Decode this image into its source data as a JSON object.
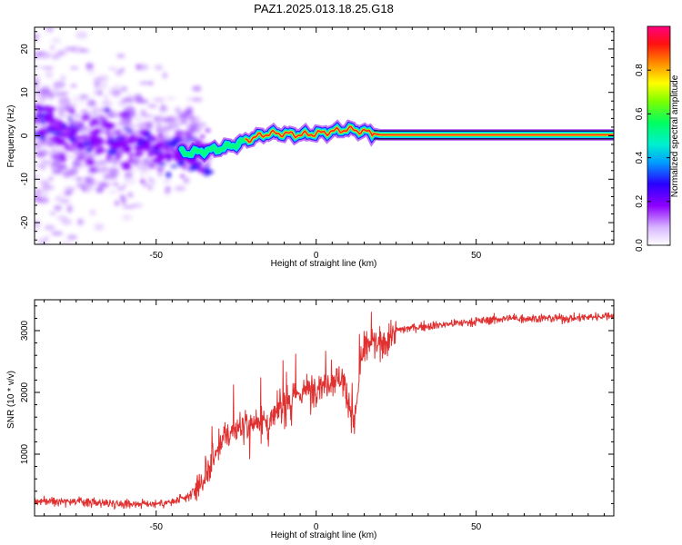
{
  "figure": {
    "title": "PAZ1.2025.013.18.25.G18"
  },
  "chart_data": [
    {
      "type": "heatmap",
      "xlabel": "Height of straight line (km)",
      "ylabel": "Frequency (Hz)",
      "xlim": [
        -88,
        93
      ],
      "ylim": [
        -25,
        25
      ],
      "xticks": [
        -50,
        0,
        50
      ],
      "yticks": [
        -20,
        -10,
        0,
        10,
        20
      ],
      "colorbar": {
        "label": "Normalized spectral amplitude",
        "range": [
          0,
          1
        ],
        "ticks": [
          "0.0",
          "0.2",
          "0.4",
          "0.6",
          "0.8"
        ],
        "colors": [
          "#ffffff",
          "#a000ff",
          "#3000ff",
          "#00c8ff",
          "#00ff80",
          "#30ff00",
          "#ffff00",
          "#ff8000",
          "#ff0000",
          "#ff0080"
        ]
      },
      "ridge": {
        "x": [
          -88,
          -80,
          -70,
          -60,
          -50,
          -40,
          -35,
          -30,
          -25,
          -20,
          -15,
          -10,
          -5,
          0,
          5,
          10,
          15,
          20,
          93
        ],
        "freq": [
          5,
          1,
          -1,
          -2,
          -3,
          -4,
          -3.5,
          -3,
          -2,
          -0.5,
          0.5,
          0.5,
          0.2,
          0.5,
          1.0,
          1.5,
          1.0,
          0.2,
          0.2
        ]
      }
    },
    {
      "type": "line",
      "xlabel": "Height of straight line (km)",
      "ylabel": "SNR (10 * v/v)",
      "xlim": [
        -88,
        93
      ],
      "ylim": [
        0,
        3500
      ],
      "xticks": [
        -50,
        0,
        50
      ],
      "yticks": [
        1000,
        2000,
        3000
      ],
      "line_color": "#e03030",
      "series": [
        {
          "x": [
            -88,
            -80,
            -70,
            -60,
            -50,
            -45,
            -40,
            -35,
            -32,
            -30,
            -28,
            -25,
            -22,
            -20,
            -17,
            -15,
            -12,
            -10,
            -7,
            -5,
            -2,
            0,
            3,
            5,
            8,
            10,
            12,
            14,
            16,
            18,
            20,
            25,
            30,
            40,
            50,
            60,
            70,
            80,
            93
          ],
          "y": [
            230,
            250,
            220,
            200,
            200,
            220,
            300,
            600,
            900,
            1200,
            1300,
            1400,
            1500,
            1500,
            1600,
            1400,
            1700,
            1800,
            1900,
            2000,
            2050,
            2100,
            2150,
            2200,
            2250,
            1900,
            1500,
            2500,
            2800,
            2800,
            2750,
            3000,
            3050,
            3100,
            3150,
            3200,
            3200,
            3200,
            3250
          ]
        }
      ]
    }
  ]
}
